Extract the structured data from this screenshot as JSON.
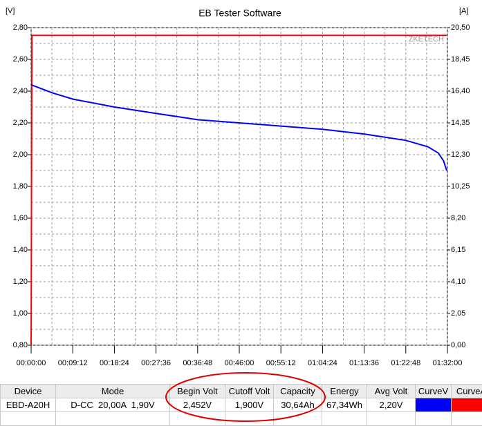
{
  "chart_data": {
    "type": "line",
    "title": "EB Tester Software",
    "ylabel": "[V]",
    "y2label": "[A]",
    "watermark": "ZKETECH",
    "xlim": [
      0,
      5520
    ],
    "xticks": [
      {
        "value": 0,
        "label": "00:00:00"
      },
      {
        "value": 552,
        "label": "00:09:12"
      },
      {
        "value": 1104,
        "label": "00:18:24"
      },
      {
        "value": 1656,
        "label": "00:27:36"
      },
      {
        "value": 2208,
        "label": "00:36:48"
      },
      {
        "value": 2760,
        "label": "00:46:00"
      },
      {
        "value": 3312,
        "label": "00:55:12"
      },
      {
        "value": 3864,
        "label": "01:04:24"
      },
      {
        "value": 4416,
        "label": "01:13:36"
      },
      {
        "value": 4968,
        "label": "01:22:48"
      },
      {
        "value": 5520,
        "label": "01:32:00"
      }
    ],
    "ylim": [
      0.8,
      2.8
    ],
    "yticks": [
      {
        "value": 0.8,
        "label": "0,80"
      },
      {
        "value": 1.0,
        "label": "1,00"
      },
      {
        "value": 1.2,
        "label": "1,20"
      },
      {
        "value": 1.4,
        "label": "1,40"
      },
      {
        "value": 1.6,
        "label": "1,60"
      },
      {
        "value": 1.8,
        "label": "1,80"
      },
      {
        "value": 2.0,
        "label": "2,00"
      },
      {
        "value": 2.2,
        "label": "2,20"
      },
      {
        "value": 2.4,
        "label": "2,40"
      },
      {
        "value": 2.6,
        "label": "2,60"
      },
      {
        "value": 2.8,
        "label": "2,80"
      }
    ],
    "y2lim": [
      0,
      20.5
    ],
    "y2ticks": [
      {
        "value": 0,
        "label": "0,00"
      },
      {
        "value": 2.05,
        "label": "2,05"
      },
      {
        "value": 4.1,
        "label": "4,10"
      },
      {
        "value": 6.15,
        "label": "6,15"
      },
      {
        "value": 8.2,
        "label": "8,20"
      },
      {
        "value": 10.25,
        "label": "10,25"
      },
      {
        "value": 12.3,
        "label": "12,30"
      },
      {
        "value": 14.35,
        "label": "14,35"
      },
      {
        "value": 16.4,
        "label": "16,40"
      },
      {
        "value": 18.45,
        "label": "18,45"
      },
      {
        "value": 20.5,
        "label": "20,50"
      }
    ],
    "grid": true,
    "series": [
      {
        "name": "CurveV",
        "color": "#0000ff",
        "x": [
          0,
          276,
          552,
          1104,
          1656,
          2208,
          2760,
          3312,
          3864,
          4416,
          4968,
          5260,
          5400,
          5470,
          5510
        ],
        "values": [
          2.44,
          2.39,
          2.35,
          2.3,
          2.26,
          2.22,
          2.2,
          2.18,
          2.16,
          2.13,
          2.09,
          2.05,
          2.01,
          1.96,
          1.9
        ]
      },
      {
        "name": "CurveA",
        "color": "#ff0000",
        "axis": "y2",
        "x": [
          0,
          10,
          5510
        ],
        "values": [
          0,
          20,
          20
        ]
      }
    ]
  },
  "table": {
    "columns": [
      "Device",
      "Mode",
      "Begin Volt",
      "Cutoff Volt",
      "Capacity",
      "Energy",
      "Avg Volt",
      "CurveV",
      "CurveA"
    ],
    "rows": [
      [
        "EBD-A20H",
        "D-CC  20,00A  1,90V",
        "2,452V",
        "1,900V",
        "30,64Ah",
        "67,34Wh",
        "2,20V"
      ]
    ]
  }
}
